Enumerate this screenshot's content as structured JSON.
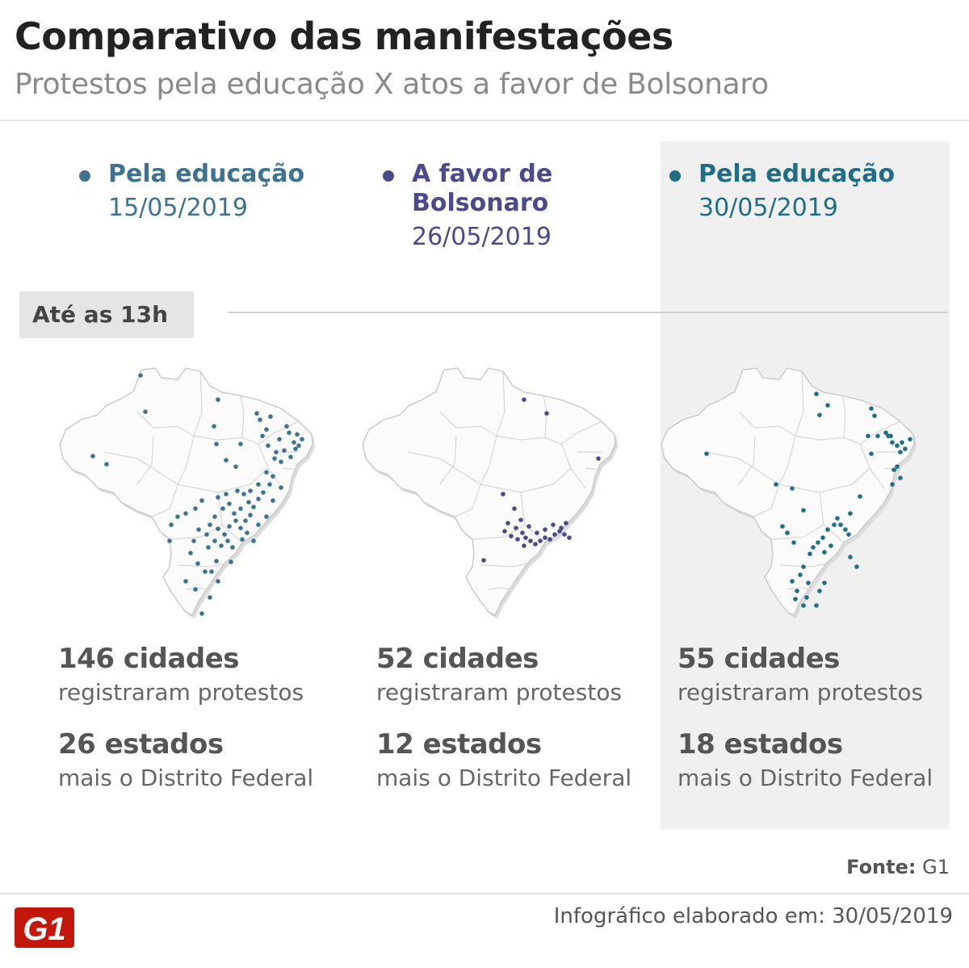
{
  "title": "Comparativo das manifestações",
  "subtitle": "Protestos pela educação X atos a favor de Bolsonaro",
  "time_filter": "Até as 13h",
  "columns": [
    {
      "label": "Pela educação",
      "date": "15/05/2019",
      "color": "#3d7390",
      "cities": "146 cidades",
      "cities_note": "registraram protestos",
      "states": "26 estados",
      "states_note": "mais o Distrito Federal"
    },
    {
      "label": "A favor de Bolsonaro",
      "date": "26/05/2019",
      "color": "#4b4a8a",
      "cities": "52 cidades",
      "cities_note": "registraram protestos",
      "states": "12 estados",
      "states_note": "mais o Distrito Federal"
    },
    {
      "label": "Pela educação",
      "date": "30/05/2019",
      "color": "#1f6e86",
      "cities": "55 cidades",
      "cities_note": "registraram protestos",
      "states": "18 estados",
      "states_note": "mais o Distrito Federal"
    }
  ],
  "source_label": "Fonte:",
  "source_value": "G1",
  "footer": "Infográfico elaborado em: 30/05/2019",
  "logo_text": "G1",
  "logo_color": "#c4170c"
}
